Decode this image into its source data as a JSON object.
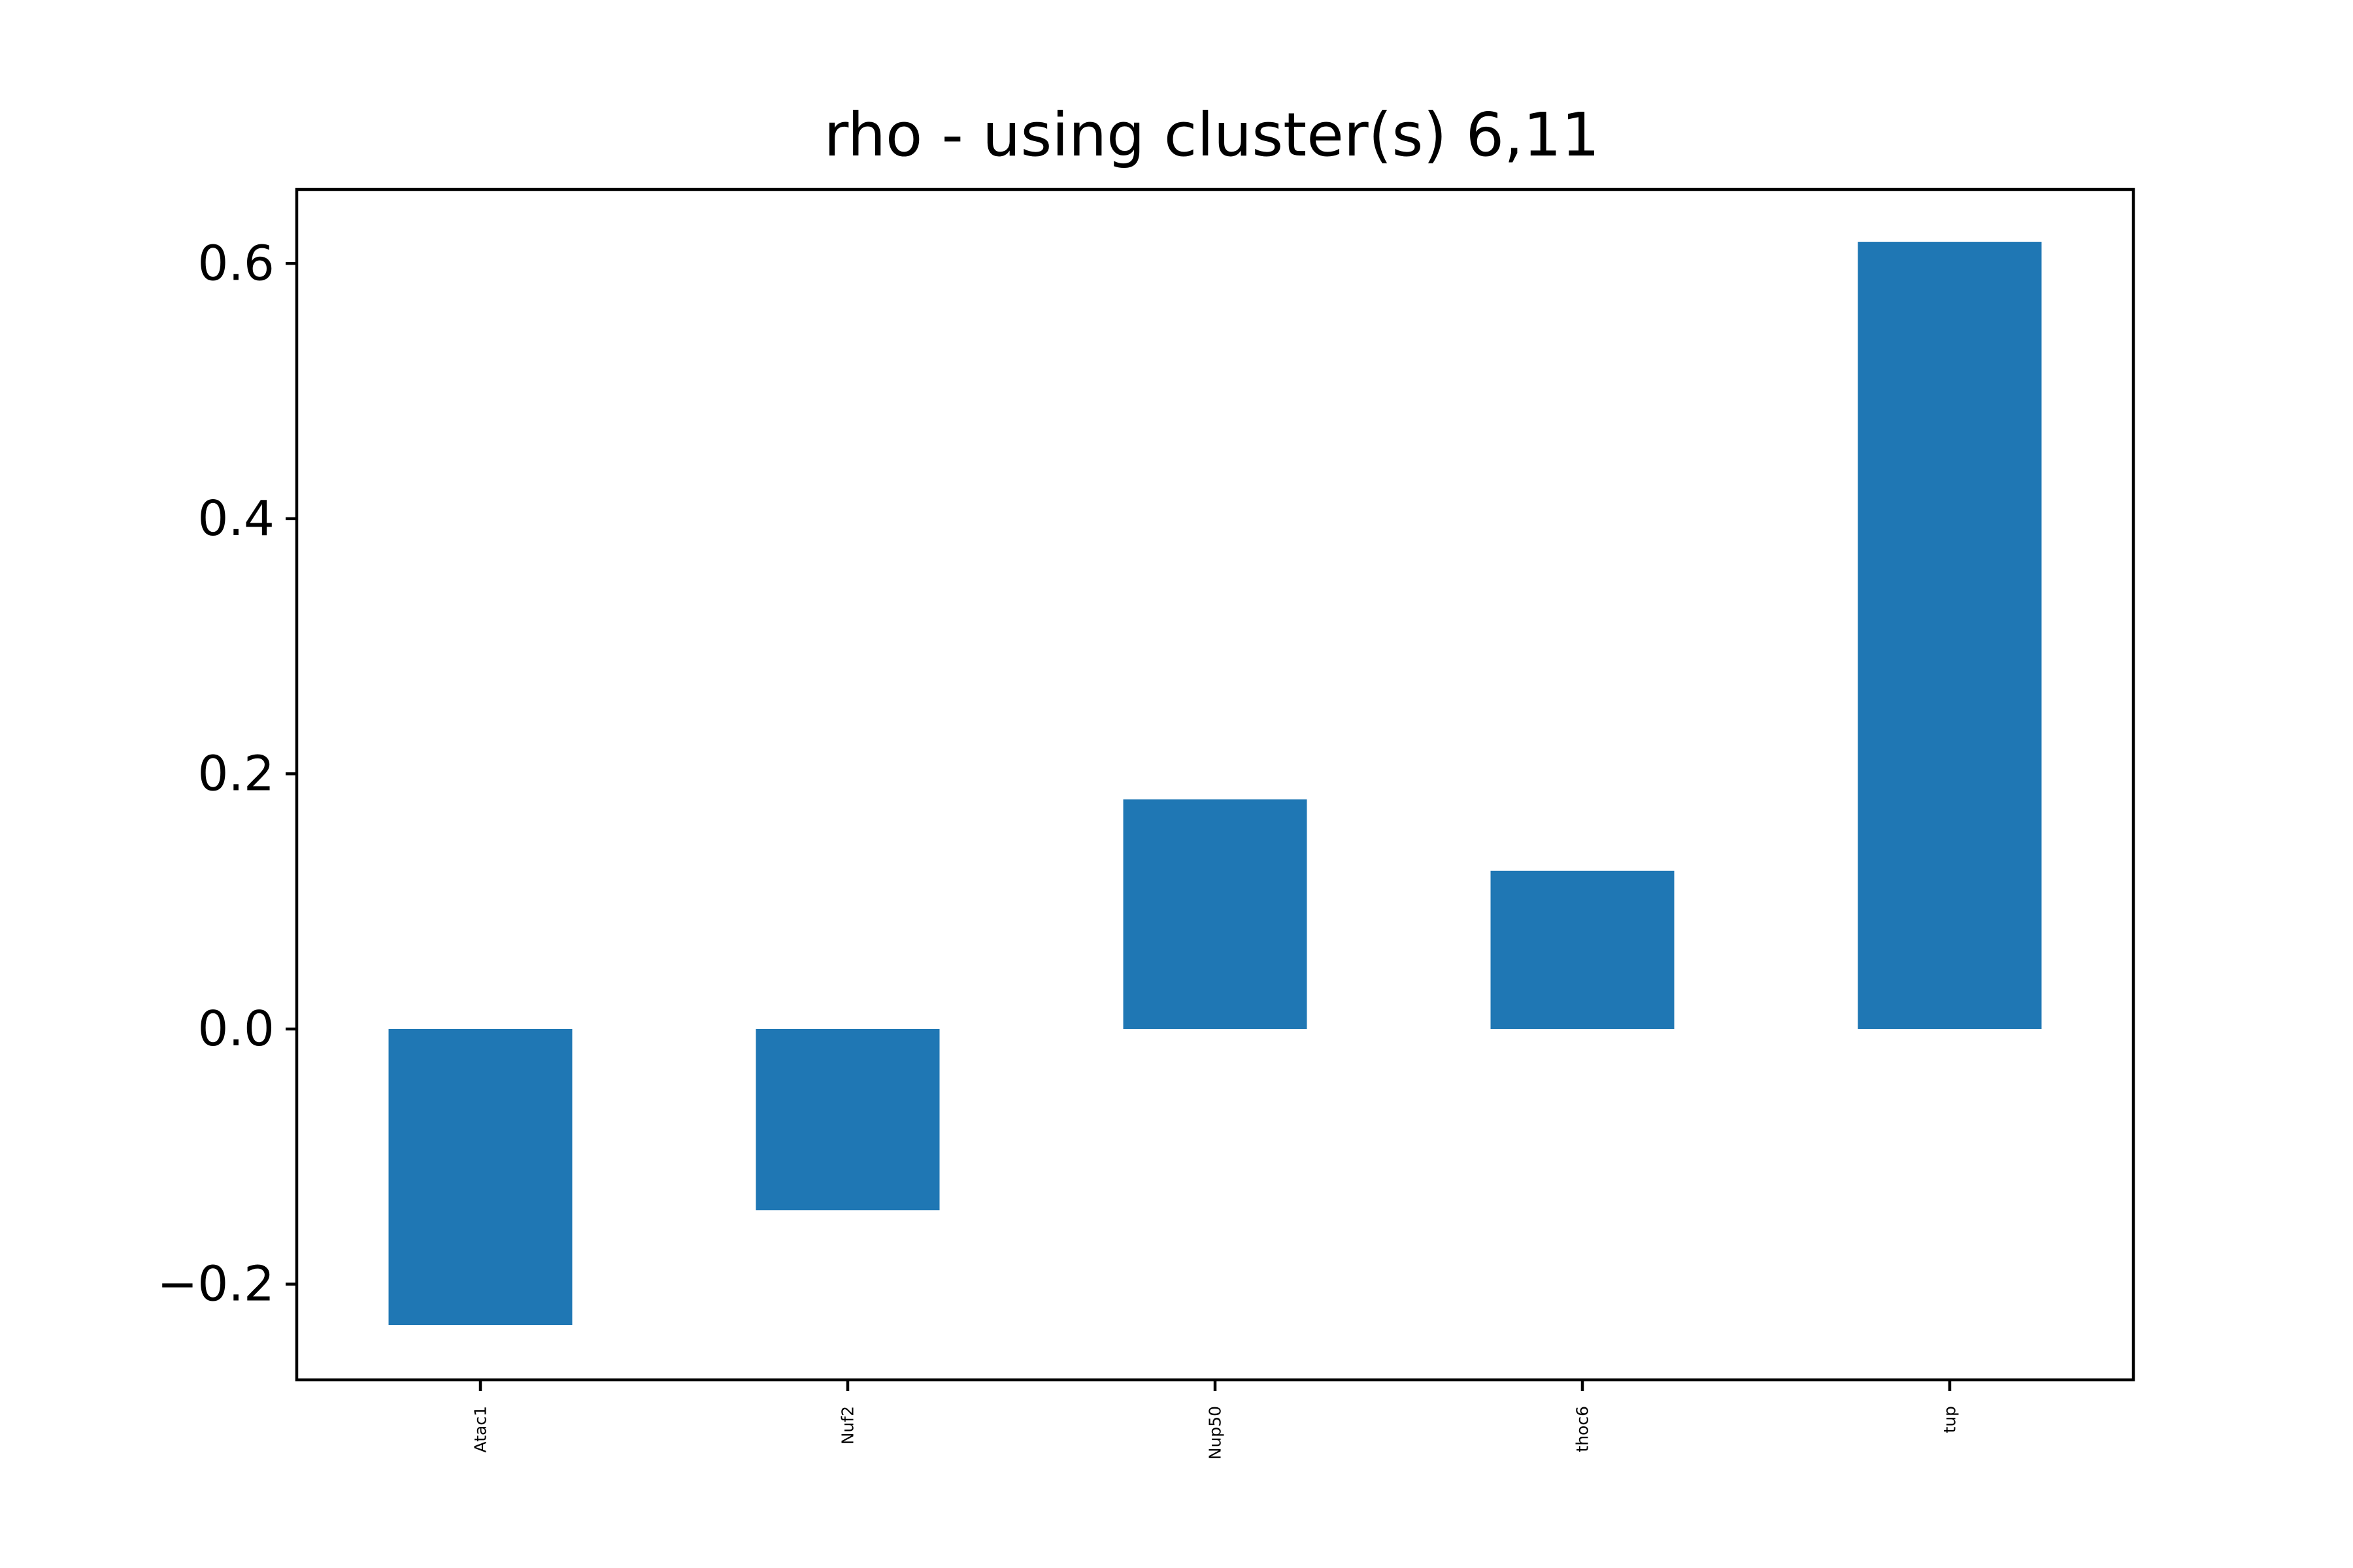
{
  "chart_data": {
    "type": "bar",
    "title": "rho - using cluster(s) 6,11",
    "xlabel": "",
    "ylabel": "",
    "categories": [
      "Atac1",
      "Nuf2",
      "Nup50",
      "thoc6",
      "tup"
    ],
    "values": [
      -0.232,
      -0.142,
      0.18,
      0.124,
      0.617
    ],
    "ylim": [
      -0.275,
      0.658
    ],
    "yticks": [
      -0.2,
      0.0,
      0.2,
      0.4,
      0.6
    ],
    "ytick_labels": [
      "−0.2",
      "0.0",
      "0.2",
      "0.4",
      "0.6"
    ],
    "grid": false,
    "legend": "none",
    "bar_color": "#1f77b4"
  }
}
